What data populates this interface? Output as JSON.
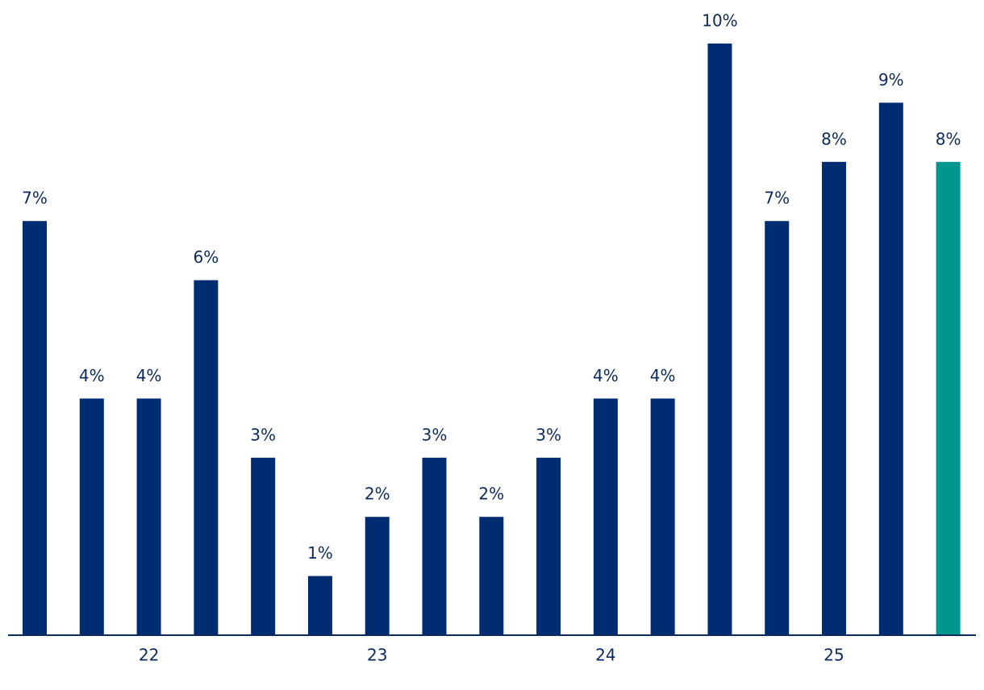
{
  "chart_data": {
    "type": "bar",
    "categories": [
      null,
      null,
      "22",
      null,
      null,
      null,
      "23",
      null,
      null,
      null,
      "24",
      null,
      null,
      null,
      "25",
      null,
      null
    ],
    "values": [
      7,
      4,
      4,
      6,
      3,
      1,
      2,
      3,
      2,
      3,
      4,
      4,
      10,
      7,
      8,
      9,
      8
    ],
    "value_labels": [
      "7%",
      "4%",
      "4%",
      "6%",
      "3%",
      "1%",
      "2%",
      "3%",
      "2%",
      "3%",
      "4%",
      "4%",
      "10%",
      "7%",
      "8%",
      "9%",
      "8%"
    ],
    "colors": [
      "#002d72",
      "#002d72",
      "#002d72",
      "#002d72",
      "#002d72",
      "#002d72",
      "#002d72",
      "#002d72",
      "#002d72",
      "#002d72",
      "#002d72",
      "#002d72",
      "#002d72",
      "#002d72",
      "#002d72",
      "#002d72",
      "#009690"
    ],
    "ylim": [
      0,
      10
    ]
  }
}
